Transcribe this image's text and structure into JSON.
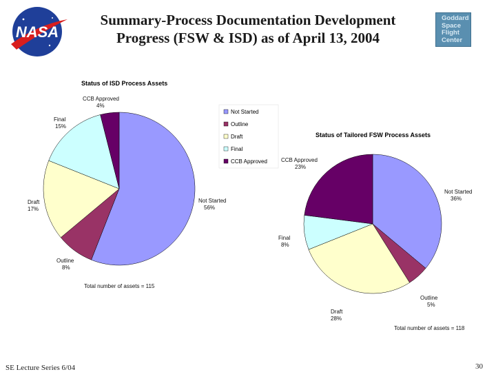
{
  "header": {
    "title_line1": "Summary-Process Documentation Development",
    "title_line2": "Progress (FSW & ISD) as of April 13, 2004",
    "logo_text": "NASA",
    "logo_icon": "nasa-meatball-logo",
    "gsfc_lines": [
      "Goddard",
      "Space",
      "Flight",
      "Center"
    ]
  },
  "footer": {
    "left": "SE Lecture Series 6/04",
    "page_number": "30"
  },
  "colors": {
    "Not Started": "#9999ff",
    "Outline": "#993366",
    "Draft": "#ffffcc",
    "Final": "#ccffff",
    "CCB Approved": "#660066"
  },
  "chart_data": [
    {
      "type": "pie",
      "title": "Status of ISD Process Assets",
      "categories": [
        "Not Started",
        "Outline",
        "Draft",
        "Final",
        "CCB Approved"
      ],
      "values": [
        56,
        8,
        17,
        15,
        4
      ],
      "labels": [
        {
          "name": "Not Started",
          "pct": "56%"
        },
        {
          "name": "Outline",
          "pct": "8%"
        },
        {
          "name": "Draft",
          "pct": "17%"
        },
        {
          "name": "Final",
          "pct": "15%"
        },
        {
          "name": "CCB Approved",
          "pct": "4%"
        }
      ],
      "legend": [
        "Not Started",
        "Outline",
        "Draft",
        "Final",
        "CCB Approved"
      ],
      "legend_placement": "right",
      "annotation": "Total number of assets = 115"
    },
    {
      "type": "pie",
      "title": "Status of Tailored FSW Process Assets",
      "categories": [
        "Not Started",
        "Outline",
        "Draft",
        "Final",
        "CCB Approved"
      ],
      "values": [
        36,
        5,
        28,
        8,
        23
      ],
      "labels": [
        {
          "name": "Not Started",
          "pct": "36%"
        },
        {
          "name": "Outline",
          "pct": "5%"
        },
        {
          "name": "Draft",
          "pct": "28%"
        },
        {
          "name": "Final",
          "pct": "8%"
        },
        {
          "name": "CCB Approved",
          "pct": "23%"
        }
      ],
      "annotation": "Total number of assets = 118"
    }
  ]
}
